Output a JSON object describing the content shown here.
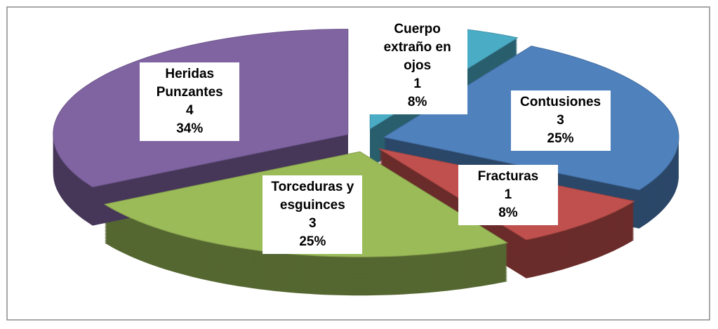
{
  "chart_data": {
    "type": "pie3d",
    "categories": [
      "Cuerpo extraño en ojos",
      "Contusiones",
      "Fracturas",
      "Torceduras y esguinces",
      "Heridas Punzantes"
    ],
    "values": [
      1,
      3,
      1,
      3,
      4
    ],
    "percent_labels": [
      "8%",
      "25%",
      "8%",
      "25%",
      "34%"
    ],
    "colors": [
      "#4bacc6",
      "#4f81bd",
      "#c0504d",
      "#9bbb59",
      "#8064a2"
    ]
  }
}
